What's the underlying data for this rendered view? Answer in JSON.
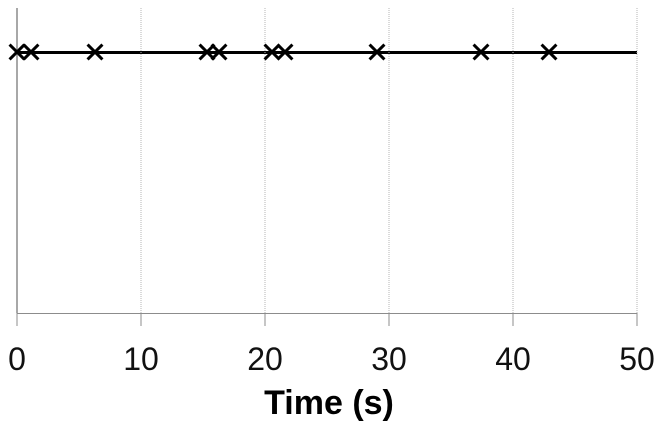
{
  "chart_data": {
    "type": "scatter",
    "subtype": "event-timeline",
    "title": "",
    "xlabel": "Time (s)",
    "ylabel": "",
    "x": [
      0,
      1.1,
      6.3,
      15.3,
      16.3,
      20.6,
      21.6,
      29.0,
      37.4,
      42.9
    ],
    "y_note": "all points lie on one horizontal line near the top of the plot",
    "marker": "x",
    "marker_color": "#000000",
    "line_color": "#000000",
    "xlim": [
      0,
      50
    ],
    "xticks": [
      0,
      10,
      20,
      30,
      40,
      50
    ],
    "xtick_labels": [
      "0",
      "10",
      "20",
      "30",
      "40",
      "50"
    ],
    "grid": "vertical dotted gridlines at every x tick; solid gray line at x=0",
    "gridline_color": "#b5b5b5",
    "zero_gridline_color": "#a8a8a8",
    "axis_color": "#8c8c8c",
    "legend_position": "none"
  }
}
